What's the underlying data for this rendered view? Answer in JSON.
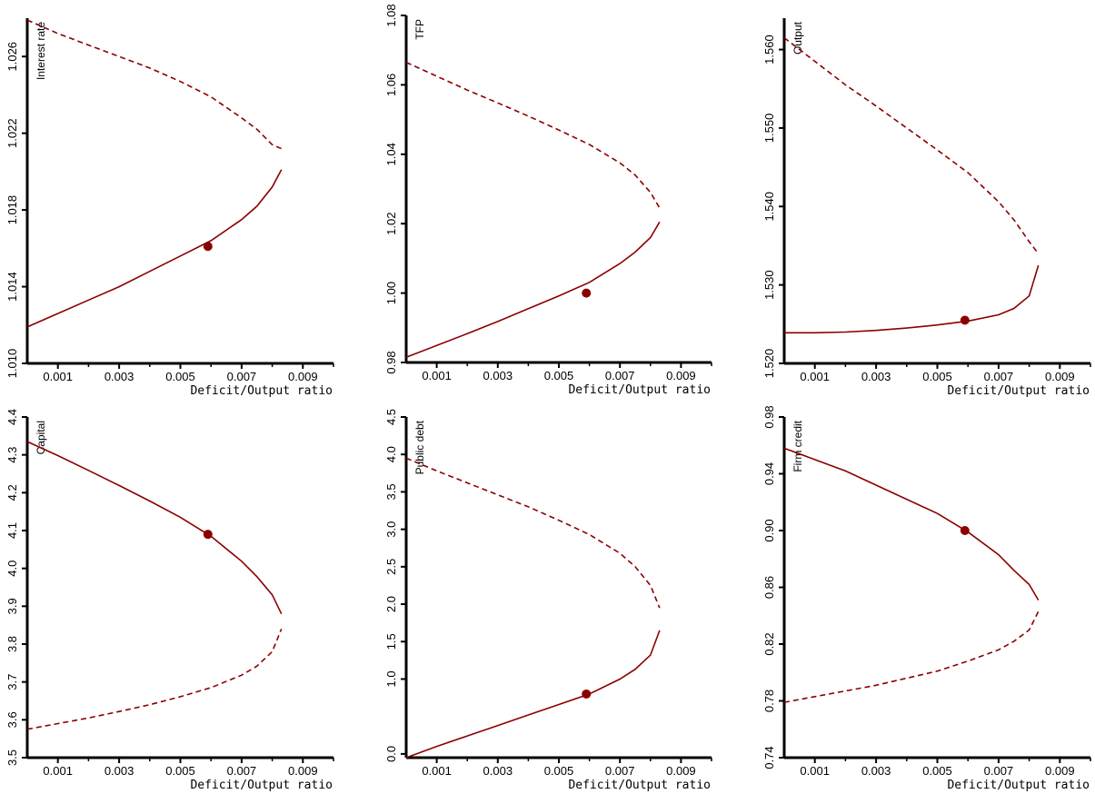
{
  "style": {
    "line_color": "#8b0000",
    "axis_color": "#000000"
  },
  "chart_data": [
    {
      "type": "line",
      "ylabel": "Interest rate",
      "xlabel": "Deficit/Output ratio",
      "xlim": [
        0.0,
        0.01
      ],
      "ylim": [
        1.01,
        1.028
      ],
      "xticks": [
        "0.001",
        "0.003",
        "0.005",
        "0.007",
        "0.009"
      ],
      "yticks": [
        "1.010",
        "1.014",
        "1.018",
        "1.022",
        "1.026"
      ],
      "series": [
        {
          "style": "solid",
          "x": [
            0.0,
            0.001,
            0.002,
            0.003,
            0.004,
            0.005,
            0.006,
            0.007,
            0.0075,
            0.008,
            0.0083
          ],
          "y": [
            1.0119,
            1.0126,
            1.0133,
            1.014,
            1.0148,
            1.0156,
            1.0164,
            1.0175,
            1.0182,
            1.0192,
            1.0201
          ]
        },
        {
          "style": "dashed",
          "x": [
            0.0,
            0.001,
            0.002,
            0.003,
            0.004,
            0.005,
            0.006,
            0.007,
            0.0075,
            0.008,
            0.0083
          ],
          "y": [
            1.0279,
            1.0272,
            1.0266,
            1.026,
            1.0254,
            1.0247,
            1.0239,
            1.0228,
            1.0222,
            1.0214,
            1.0212
          ]
        }
      ],
      "marker": {
        "x": 0.0059,
        "y": 1.0161
      }
    },
    {
      "type": "line",
      "ylabel": "TFP",
      "xlabel": "Deficit/Output ratio",
      "xlim": [
        0.0,
        0.01
      ],
      "ylim": [
        0.98,
        1.08
      ],
      "xticks": [
        "0.001",
        "0.003",
        "0.005",
        "0.007",
        "0.009"
      ],
      "yticks": [
        "0.98",
        "1.00",
        "1.02",
        "1.04",
        "1.06",
        "1.08"
      ],
      "series": [
        {
          "style": "solid",
          "x": [
            0.0,
            0.001,
            0.002,
            0.003,
            0.004,
            0.005,
            0.006,
            0.007,
            0.0075,
            0.008,
            0.0083
          ],
          "y": [
            0.9815,
            0.9849,
            0.9883,
            0.9918,
            0.9955,
            0.9992,
            1.0031,
            1.0085,
            1.0118,
            1.016,
            1.0205
          ]
        },
        {
          "style": "dashed",
          "x": [
            0.0,
            0.001,
            0.002,
            0.003,
            0.004,
            0.005,
            0.006,
            0.007,
            0.0075,
            0.008,
            0.0083
          ],
          "y": [
            1.0665,
            1.0625,
            1.0585,
            1.0548,
            1.051,
            1.047,
            1.0428,
            1.0375,
            1.034,
            1.029,
            1.0245
          ]
        }
      ],
      "marker": {
        "x": 0.0059,
        "y": 1.0
      }
    },
    {
      "type": "line",
      "ylabel": "Output",
      "xlabel": "Deficit/Output ratio",
      "xlim": [
        0.0,
        0.01
      ],
      "ylim": [
        1.52,
        1.564
      ],
      "xticks": [
        "0.001",
        "0.003",
        "0.005",
        "0.007",
        "0.009"
      ],
      "yticks": [
        "1.520",
        "1.530",
        "1.540",
        "1.550",
        "1.560"
      ],
      "series": [
        {
          "style": "solid",
          "x": [
            0.0,
            0.001,
            0.002,
            0.003,
            0.004,
            0.005,
            0.006,
            0.007,
            0.0075,
            0.008,
            0.0083
          ],
          "y": [
            1.5239,
            1.5239,
            1.524,
            1.5242,
            1.5245,
            1.5249,
            1.5254,
            1.5262,
            1.527,
            1.5286,
            1.5325
          ]
        },
        {
          "style": "dashed",
          "x": [
            0.0,
            0.001,
            0.002,
            0.003,
            0.004,
            0.005,
            0.006,
            0.007,
            0.0075,
            0.008,
            0.0083
          ],
          "y": [
            1.5615,
            1.5585,
            1.5555,
            1.5528,
            1.55,
            1.5472,
            1.5443,
            1.5406,
            1.5383,
            1.5355,
            1.534
          ]
        }
      ],
      "marker": {
        "x": 0.0059,
        "y": 1.5255
      }
    },
    {
      "type": "line",
      "ylabel": "Capital",
      "xlabel": "Deficit/Output ratio",
      "xlim": [
        0.0,
        0.01
      ],
      "ylim": [
        3.5,
        4.4
      ],
      "xticks": [
        "0.001",
        "0.003",
        "0.005",
        "0.007",
        "0.009"
      ],
      "yticks": [
        "3.5",
        "3.6",
        "3.7",
        "3.8",
        "3.9",
        "4.0",
        "4.1",
        "4.2",
        "4.3",
        "4.4"
      ],
      "series": [
        {
          "style": "solid",
          "x": [
            0.0,
            0.001,
            0.002,
            0.003,
            0.004,
            0.005,
            0.006,
            0.007,
            0.0075,
            0.008,
            0.0083
          ],
          "y": [
            4.335,
            4.298,
            4.259,
            4.219,
            4.178,
            4.135,
            4.085,
            4.019,
            3.978,
            3.93,
            3.88
          ]
        },
        {
          "style": "dashed",
          "x": [
            0.0,
            0.001,
            0.002,
            0.003,
            0.004,
            0.005,
            0.006,
            0.007,
            0.0075,
            0.008,
            0.0083
          ],
          "y": [
            3.575,
            3.59,
            3.605,
            3.622,
            3.64,
            3.661,
            3.685,
            3.718,
            3.742,
            3.78,
            3.84
          ]
        }
      ],
      "marker": {
        "x": 0.0059,
        "y": 4.09
      }
    },
    {
      "type": "line",
      "ylabel": "Public debt",
      "xlabel": "Deficit/Output ratio",
      "xlim": [
        0.0,
        0.01
      ],
      "ylim": [
        -0.05,
        4.5
      ],
      "xticks": [
        "0.001",
        "0.003",
        "0.005",
        "0.007",
        "0.009"
      ],
      "yticks": [
        "0.0",
        "1.0",
        "1.5",
        "2.0",
        "2.5",
        "3.0",
        "3.5",
        "4.0",
        "4.5"
      ],
      "series": [
        {
          "style": "solid",
          "x": [
            0.0,
            0.001,
            0.002,
            0.003,
            0.004,
            0.005,
            0.006,
            0.007,
            0.0075,
            0.008,
            0.0083
          ],
          "y": [
            -0.05,
            0.1,
            0.24,
            0.38,
            0.52,
            0.66,
            0.8,
            1.0,
            1.13,
            1.32,
            1.65
          ]
        },
        {
          "style": "dashed",
          "x": [
            0.0,
            0.001,
            0.002,
            0.003,
            0.004,
            0.005,
            0.006,
            0.007,
            0.0075,
            0.008,
            0.0083
          ],
          "y": [
            3.95,
            3.78,
            3.62,
            3.46,
            3.3,
            3.12,
            2.93,
            2.68,
            2.5,
            2.25,
            1.95
          ]
        }
      ],
      "marker": {
        "x": 0.0059,
        "y": 0.8
      }
    },
    {
      "type": "line",
      "ylabel": "Firm credit",
      "xlabel": "Deficit/Output ratio",
      "xlim": [
        0.0,
        0.01
      ],
      "ylim": [
        0.74,
        0.98
      ],
      "xticks": [
        "0.001",
        "0.003",
        "0.005",
        "0.007",
        "0.009"
      ],
      "yticks": [
        "0.74",
        "0.78",
        "0.82",
        "0.86",
        "0.90",
        "0.94",
        "0.98"
      ],
      "series": [
        {
          "style": "solid",
          "x": [
            0.0,
            0.001,
            0.002,
            0.003,
            0.004,
            0.005,
            0.006,
            0.007,
            0.0075,
            0.008,
            0.0083
          ],
          "y": [
            0.958,
            0.95,
            0.942,
            0.932,
            0.922,
            0.912,
            0.899,
            0.883,
            0.872,
            0.862,
            0.851
          ]
        },
        {
          "style": "dashed",
          "x": [
            0.0,
            0.001,
            0.002,
            0.003,
            0.004,
            0.005,
            0.006,
            0.007,
            0.0075,
            0.008,
            0.0083
          ],
          "y": [
            0.779,
            0.783,
            0.787,
            0.791,
            0.796,
            0.801,
            0.808,
            0.816,
            0.822,
            0.83,
            0.843
          ]
        }
      ],
      "marker": {
        "x": 0.0059,
        "y": 0.9
      }
    }
  ]
}
